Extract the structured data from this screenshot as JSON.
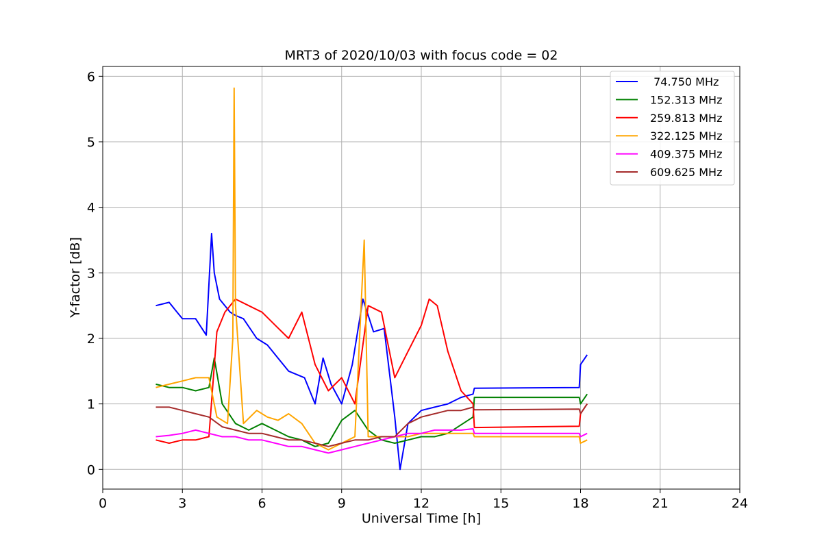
{
  "chart_data": {
    "type": "line",
    "title": "MRT3 of 2020/10/03 with focus code = 02",
    "xlabel": "Universal Time [h]",
    "ylabel": "Y-factor [dB]",
    "xlim": [
      0,
      24
    ],
    "ylim": [
      -0.3,
      6.15
    ],
    "xticks": [
      0,
      3,
      6,
      9,
      12,
      15,
      18,
      21,
      24
    ],
    "yticks": [
      0,
      1,
      2,
      3,
      4,
      5,
      6
    ],
    "grid": true,
    "legend_position": "top-right",
    "series": [
      {
        "name": " 74.750 MHz",
        "color": "#0000ff",
        "x": [
          2.0,
          2.5,
          2.8,
          3.0,
          3.5,
          3.9,
          4.1,
          4.2,
          4.4,
          4.8,
          5.0,
          5.3,
          5.8,
          6.2,
          6.6,
          7.0,
          7.6,
          8.0,
          8.3,
          8.6,
          9.0,
          9.4,
          9.8,
          10.2,
          10.6,
          11.0,
          11.2,
          11.5,
          12.0,
          12.5,
          13.0,
          13.5,
          13.95,
          14.0,
          17.95,
          18.0,
          18.25
        ],
        "y": [
          2.5,
          2.55,
          2.4,
          2.3,
          2.3,
          2.05,
          3.6,
          3.0,
          2.6,
          2.4,
          2.35,
          2.3,
          2.0,
          1.9,
          1.7,
          1.5,
          1.4,
          1.0,
          1.7,
          1.3,
          1.0,
          1.6,
          2.6,
          2.1,
          2.15,
          0.8,
          0.0,
          0.7,
          0.9,
          0.95,
          1.0,
          1.1,
          1.15,
          1.24,
          1.25,
          1.6,
          1.75
        ]
      },
      {
        "name": "152.313 MHz",
        "color": "#008000",
        "x": [
          2.0,
          2.5,
          3.0,
          3.5,
          4.0,
          4.2,
          4.5,
          5.0,
          5.5,
          6.0,
          6.5,
          7.0,
          7.5,
          8.0,
          8.5,
          9.0,
          9.5,
          10.0,
          10.5,
          11.0,
          11.5,
          12.0,
          12.5,
          13.0,
          13.95,
          14.0,
          17.95,
          18.0,
          18.25
        ],
        "y": [
          1.3,
          1.25,
          1.25,
          1.2,
          1.25,
          1.7,
          1.0,
          0.7,
          0.6,
          0.7,
          0.6,
          0.5,
          0.45,
          0.35,
          0.4,
          0.75,
          0.9,
          0.6,
          0.45,
          0.4,
          0.45,
          0.5,
          0.5,
          0.55,
          0.8,
          1.1,
          1.1,
          1.0,
          1.15
        ]
      },
      {
        "name": "259.813 MHz",
        "color": "#ff0000",
        "x": [
          2.0,
          2.5,
          3.0,
          3.5,
          4.0,
          4.3,
          4.6,
          5.0,
          5.5,
          6.0,
          6.5,
          7.0,
          7.5,
          8.0,
          8.5,
          9.0,
          9.5,
          10.0,
          10.5,
          11.0,
          11.5,
          12.0,
          12.3,
          12.6,
          13.0,
          13.5,
          13.95,
          14.0,
          17.95,
          18.0,
          18.25
        ],
        "y": [
          0.45,
          0.4,
          0.45,
          0.45,
          0.5,
          2.1,
          2.4,
          2.6,
          2.5,
          2.4,
          2.2,
          2.0,
          2.4,
          1.6,
          1.2,
          1.4,
          1.0,
          2.5,
          2.4,
          1.4,
          1.8,
          2.2,
          2.6,
          2.5,
          1.8,
          1.2,
          1.0,
          0.64,
          0.66,
          0.85,
          1.0
        ]
      },
      {
        "name": "322.125 MHz",
        "color": "#ffa500",
        "x": [
          2.0,
          2.5,
          3.0,
          3.5,
          4.0,
          4.3,
          4.7,
          4.9,
          4.95,
          5.0,
          5.3,
          5.8,
          6.2,
          6.6,
          7.0,
          7.5,
          8.0,
          8.5,
          9.0,
          9.5,
          9.85,
          10.0,
          10.5,
          11.0,
          11.5,
          12.0,
          12.5,
          13.0,
          13.5,
          13.95,
          14.0,
          17.95,
          18.0,
          18.25
        ],
        "y": [
          1.25,
          1.3,
          1.35,
          1.4,
          1.4,
          0.8,
          0.7,
          2.0,
          5.82,
          2.5,
          0.7,
          0.9,
          0.8,
          0.75,
          0.85,
          0.7,
          0.4,
          0.3,
          0.4,
          0.5,
          3.5,
          0.5,
          0.5,
          0.5,
          0.5,
          0.55,
          0.55,
          0.55,
          0.55,
          0.55,
          0.5,
          0.5,
          0.4,
          0.45
        ]
      },
      {
        "name": "409.375 MHz",
        "color": "#ff00ff",
        "x": [
          2.0,
          2.5,
          3.0,
          3.5,
          4.0,
          4.5,
          5.0,
          5.5,
          6.0,
          6.5,
          7.0,
          7.5,
          8.0,
          8.5,
          9.0,
          9.5,
          10.0,
          10.5,
          11.0,
          11.5,
          12.0,
          12.5,
          13.0,
          13.5,
          13.95,
          14.0,
          17.95,
          18.0,
          18.25
        ],
        "y": [
          0.5,
          0.52,
          0.55,
          0.6,
          0.55,
          0.5,
          0.5,
          0.45,
          0.45,
          0.4,
          0.35,
          0.35,
          0.3,
          0.25,
          0.3,
          0.35,
          0.4,
          0.45,
          0.5,
          0.55,
          0.55,
          0.6,
          0.6,
          0.6,
          0.62,
          0.55,
          0.55,
          0.5,
          0.55
        ]
      },
      {
        "name": "609.625 MHz",
        "color": "#a52a2a",
        "x": [
          2.0,
          2.5,
          3.0,
          3.5,
          4.0,
          4.5,
          5.0,
          5.5,
          6.0,
          6.5,
          7.0,
          7.5,
          8.0,
          8.5,
          9.0,
          9.5,
          10.0,
          10.5,
          11.0,
          11.5,
          12.0,
          12.5,
          13.0,
          13.5,
          13.95,
          14.0,
          17.95,
          18.0,
          18.25
        ],
        "y": [
          0.95,
          0.95,
          0.9,
          0.85,
          0.8,
          0.65,
          0.6,
          0.55,
          0.55,
          0.5,
          0.45,
          0.45,
          0.4,
          0.35,
          0.4,
          0.45,
          0.45,
          0.5,
          0.5,
          0.7,
          0.8,
          0.85,
          0.9,
          0.9,
          0.95,
          0.91,
          0.92,
          0.85,
          1.0
        ]
      }
    ]
  }
}
